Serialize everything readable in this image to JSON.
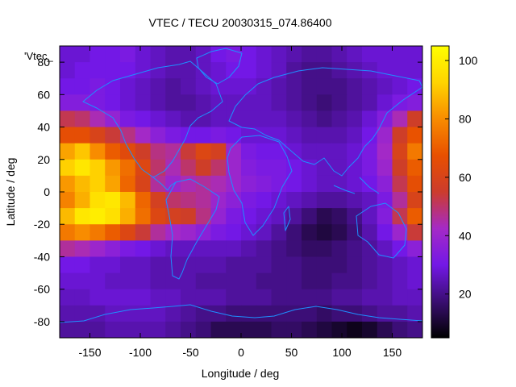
{
  "chart_data": {
    "type": "heatmap",
    "title": "VTEC / TECU 20030315_074.86400",
    "xlabel": "Longitude / deg",
    "ylabel": "Latitude / deg",
    "key_label": "'Vtec_",
    "xlim": [
      -180,
      180
    ],
    "ylim": [
      -90,
      90
    ],
    "xticks": [
      -150,
      -100,
      -50,
      0,
      50,
      100,
      150
    ],
    "yticks": [
      -80,
      -60,
      -40,
      -20,
      0,
      20,
      40,
      60,
      80
    ],
    "colorbar": {
      "range": [
        5,
        105
      ],
      "ticks": [
        20,
        40,
        60,
        80,
        100
      ],
      "palette": [
        "#000000",
        "#3a0e72",
        "#7318e6",
        "#a52ac6",
        "#cc3c2c",
        "#e85000",
        "#f88c00",
        "#ffd400",
        "#ffff00"
      ]
    },
    "grid": false,
    "legend": "none",
    "coastline_color": "#1e90ff",
    "lon_centers": [
      -172.5,
      -157.5,
      -142.5,
      -127.5,
      -112.5,
      -97.5,
      -82.5,
      -67.5,
      -52.5,
      -37.5,
      -22.5,
      -7.5,
      7.5,
      22.5,
      37.5,
      52.5,
      67.5,
      82.5,
      97.5,
      112.5,
      127.5,
      142.5,
      157.5,
      172.5
    ],
    "lat_centers": [
      85,
      75,
      65,
      55,
      45,
      35,
      25,
      15,
      5,
      -5,
      -15,
      -25,
      -35,
      -45,
      -55,
      -65,
      -75,
      -85
    ],
    "tec": [
      [
        28,
        28,
        30,
        30,
        32,
        28,
        26,
        24,
        24,
        26,
        30,
        32,
        30,
        28,
        26,
        24,
        22,
        22,
        24,
        26,
        28,
        28,
        28,
        28
      ],
      [
        28,
        30,
        30,
        30,
        30,
        28,
        26,
        24,
        24,
        26,
        28,
        30,
        30,
        28,
        26,
        22,
        20,
        20,
        22,
        24,
        26,
        28,
        28,
        28
      ],
      [
        30,
        30,
        32,
        30,
        28,
        26,
        24,
        22,
        24,
        26,
        28,
        28,
        28,
        26,
        24,
        22,
        20,
        20,
        20,
        22,
        24,
        26,
        28,
        30
      ],
      [
        34,
        34,
        32,
        30,
        28,
        26,
        24,
        22,
        22,
        24,
        26,
        26,
        26,
        26,
        24,
        22,
        20,
        18,
        20,
        22,
        24,
        28,
        32,
        34
      ],
      [
        52,
        50,
        44,
        38,
        32,
        30,
        28,
        26,
        24,
        24,
        26,
        26,
        26,
        26,
        26,
        24,
        22,
        20,
        22,
        24,
        28,
        34,
        44,
        56
      ],
      [
        66,
        66,
        60,
        54,
        48,
        42,
        36,
        32,
        30,
        30,
        32,
        30,
        28,
        28,
        28,
        26,
        24,
        24,
        24,
        26,
        30,
        40,
        56,
        68
      ],
      [
        84,
        90,
        80,
        70,
        64,
        56,
        48,
        46,
        54,
        62,
        58,
        40,
        32,
        30,
        30,
        28,
        26,
        26,
        26,
        28,
        32,
        42,
        60,
        76
      ],
      [
        92,
        98,
        92,
        82,
        74,
        62,
        50,
        44,
        50,
        56,
        50,
        40,
        34,
        32,
        32,
        30,
        28,
        26,
        26,
        28,
        32,
        40,
        56,
        70
      ],
      [
        82,
        88,
        92,
        84,
        72,
        60,
        46,
        40,
        44,
        46,
        44,
        40,
        36,
        34,
        32,
        30,
        28,
        26,
        26,
        28,
        30,
        36,
        52,
        66
      ],
      [
        78,
        86,
        96,
        98,
        88,
        72,
        58,
        50,
        48,
        46,
        40,
        36,
        32,
        30,
        28,
        26,
        24,
        22,
        22,
        24,
        26,
        32,
        46,
        60
      ],
      [
        88,
        98,
        100,
        96,
        86,
        74,
        62,
        58,
        56,
        48,
        38,
        32,
        30,
        28,
        26,
        22,
        18,
        14,
        16,
        20,
        26,
        34,
        52,
        70
      ],
      [
        76,
        80,
        76,
        70,
        62,
        54,
        46,
        42,
        40,
        36,
        32,
        30,
        28,
        26,
        22,
        18,
        14,
        12,
        14,
        18,
        24,
        30,
        40,
        54
      ],
      [
        46,
        44,
        40,
        36,
        32,
        30,
        28,
        26,
        26,
        26,
        26,
        26,
        24,
        22,
        20,
        18,
        16,
        16,
        18,
        20,
        22,
        26,
        30,
        36
      ],
      [
        30,
        30,
        28,
        28,
        26,
        26,
        24,
        24,
        24,
        24,
        24,
        22,
        22,
        22,
        20,
        20,
        18,
        18,
        18,
        20,
        22,
        24,
        26,
        28
      ],
      [
        28,
        28,
        28,
        26,
        26,
        26,
        24,
        24,
        24,
        22,
        22,
        22,
        22,
        20,
        20,
        20,
        18,
        18,
        20,
        20,
        22,
        24,
        26,
        28
      ],
      [
        26,
        26,
        28,
        28,
        28,
        28,
        26,
        26,
        24,
        24,
        24,
        22,
        22,
        22,
        20,
        20,
        20,
        20,
        22,
        22,
        24,
        24,
        26,
        26
      ],
      [
        24,
        24,
        24,
        26,
        26,
        26,
        26,
        24,
        22,
        20,
        20,
        18,
        18,
        18,
        18,
        18,
        18,
        16,
        18,
        18,
        20,
        22,
        22,
        24
      ],
      [
        22,
        22,
        22,
        24,
        24,
        24,
        24,
        22,
        20,
        18,
        14,
        14,
        14,
        14,
        16,
        16,
        14,
        12,
        10,
        8,
        10,
        14,
        18,
        20
      ]
    ]
  }
}
